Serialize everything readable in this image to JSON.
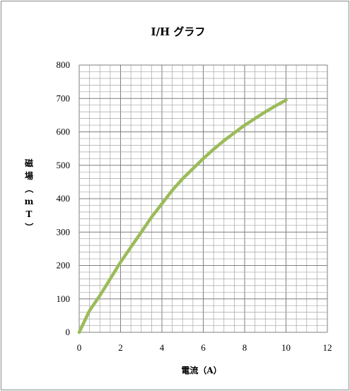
{
  "chart_data": {
    "type": "line",
    "title": "I/H グラフ",
    "xlabel": "電流（A）",
    "ylabel": "磁場（mT）",
    "xlim": [
      0,
      12
    ],
    "ylim": [
      0,
      800
    ],
    "x_ticks": [
      "0",
      "2",
      "4",
      "6",
      "8",
      "10",
      "12"
    ],
    "y_ticks": [
      "0",
      "100",
      "200",
      "300",
      "400",
      "500",
      "600",
      "700",
      "800"
    ],
    "grid": true,
    "legend": "none",
    "colors": {
      "line": "#9bbb59",
      "major_grid": "#7f7f7f",
      "minor_grid": "#a6a6a6"
    },
    "series": [
      {
        "x": [
          0,
          0.5,
          1,
          1.5,
          2,
          2.5,
          3,
          3.5,
          4,
          4.5,
          5,
          5.5,
          6,
          6.5,
          7,
          7.5,
          8,
          8.5,
          9,
          9.5,
          10
        ],
        "y": [
          0,
          65,
          110,
          160,
          210,
          255,
          300,
          345,
          385,
          425,
          460,
          490,
          520,
          548,
          574,
          597,
          620,
          640,
          660,
          678,
          695
        ]
      }
    ]
  }
}
